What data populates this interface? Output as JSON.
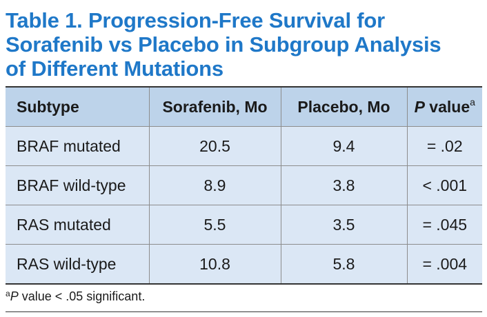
{
  "title": {
    "line1": "Table 1. Progression-Free Survival for",
    "line2": "Sorafenib vs Placebo in Subgroup Analysis",
    "line3": "of Different Mutations"
  },
  "table": {
    "headers": {
      "subtype": "Subtype",
      "sorafenib": "Sorafenib, Mo",
      "placebo": "Placebo, Mo",
      "p_label": "P",
      "p_suffix": " value",
      "p_sup": "a"
    },
    "rows": [
      {
        "subtype": "BRAF mutated",
        "sorafenib": "20.5",
        "placebo": "9.4",
        "p": "= .02"
      },
      {
        "subtype": "BRAF wild-type",
        "sorafenib": "8.9",
        "placebo": "3.8",
        "p": "< .001"
      },
      {
        "subtype": "RAS mutated",
        "sorafenib": "5.5",
        "placebo": "3.5",
        "p": "= .045"
      },
      {
        "subtype": "RAS wild-type",
        "sorafenib": "10.8",
        "placebo": "5.8",
        "p": "= .004"
      }
    ]
  },
  "footnote": {
    "sup": "a",
    "italic": "P",
    "text": " value < .05 significant."
  }
}
